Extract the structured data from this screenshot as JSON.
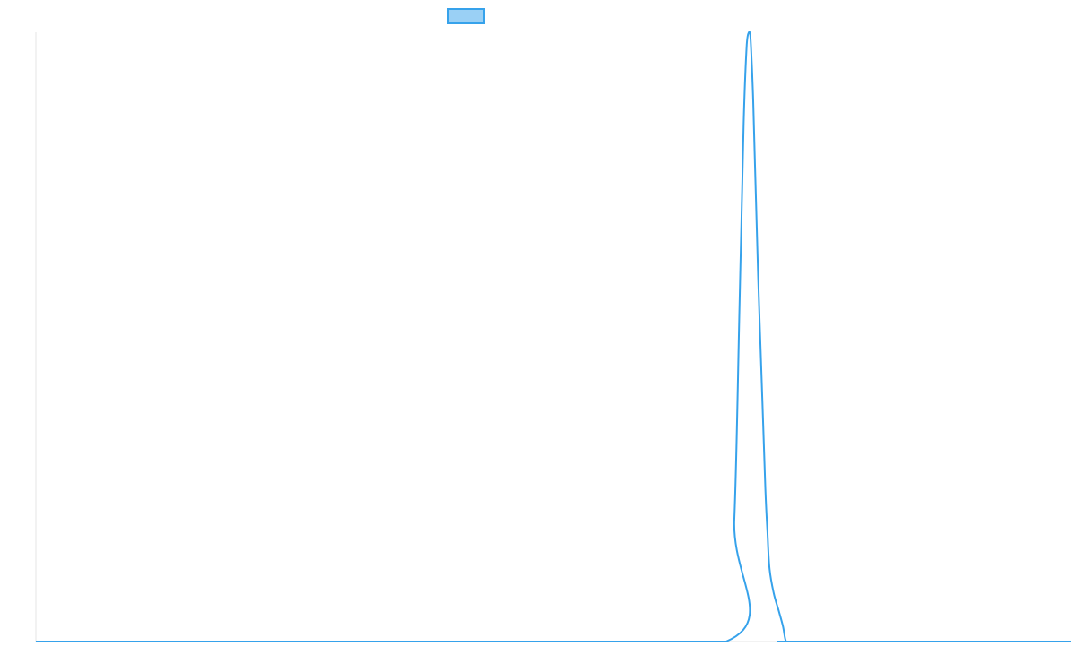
{
  "chart_data": {
    "type": "line",
    "title": "",
    "xlabel": "",
    "ylabel": "",
    "xlim": [
      0,
      1000
    ],
    "ylim": [
      0,
      1
    ],
    "grid": false,
    "legend": {
      "placement": "top-center",
      "entries": [
        {
          "label": "",
          "color": "#36a2eb",
          "fill": "#9ad0f5"
        }
      ]
    },
    "series": [
      {
        "color": "#36a2eb",
        "x": [
          0,
          400,
          667,
          675,
          680,
          684,
          687,
          689,
          690,
          691,
          693,
          695,
          698,
          702,
          705,
          707,
          709,
          713,
          718,
          722,
          725,
          730,
          740,
          1000
        ],
        "y": [
          0,
          0,
          0,
          0.2,
          0.55,
          0.85,
          0.98,
          1.0,
          1.0,
          0.98,
          0.9,
          0.78,
          0.6,
          0.4,
          0.25,
          0.18,
          0.12,
          0.08,
          0.05,
          0.025,
          0,
          0,
          0,
          0
        ]
      }
    ]
  },
  "colors": {
    "axis": "#e5e5e5",
    "line": "#36a2eb",
    "legend_fill": "#9ad0f5"
  }
}
